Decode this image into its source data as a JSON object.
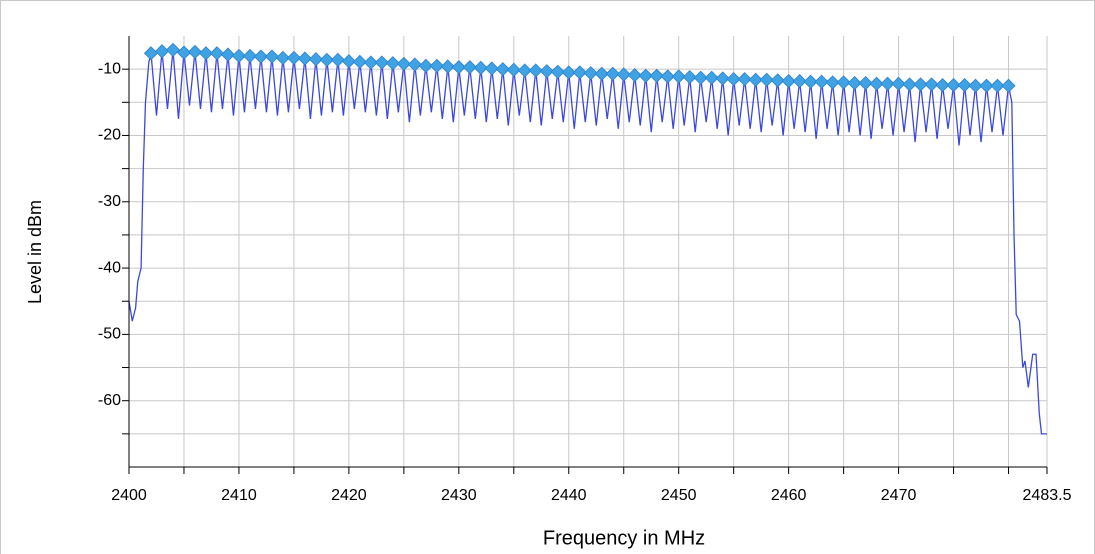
{
  "chart_data": {
    "type": "line",
    "xlabel": "Frequency in MHz",
    "ylabel": "Level in dBm",
    "xlim": [
      2400,
      2483.5
    ],
    "ylim": [
      -70,
      -5
    ],
    "xticks": [
      2400,
      2410,
      2420,
      2430,
      2440,
      2450,
      2460,
      2470,
      2483.5
    ],
    "xminorticks": [
      2405,
      2415,
      2425,
      2435,
      2445,
      2455,
      2465,
      2475,
      2480
    ],
    "yticks": [
      -60,
      -50,
      -40,
      -30,
      -20,
      -10
    ],
    "yminorticks": [
      -65,
      -55,
      -45,
      -35,
      -25,
      -15
    ],
    "grid": true,
    "series": [
      {
        "type": "line",
        "color": "#3b48e0",
        "x": [
          2400,
          2400.3,
          2400.6,
          2400.8,
          2401.1,
          2401.3,
          2401.5,
          2401.8,
          2402,
          2402.5,
          2403,
          2403.5,
          2404,
          2404.5,
          2405,
          2405.5,
          2406,
          2406.5,
          2407,
          2407.5,
          2408,
          2408.5,
          2409,
          2409.5,
          2410,
          2410.5,
          2411,
          2411.5,
          2412,
          2412.5,
          2413,
          2413.5,
          2414,
          2414.5,
          2415,
          2415.5,
          2416,
          2416.5,
          2417,
          2417.5,
          2418,
          2418.5,
          2419,
          2419.5,
          2420,
          2420.5,
          2421,
          2421.5,
          2422,
          2422.5,
          2423,
          2423.5,
          2424,
          2424.5,
          2425,
          2425.5,
          2426,
          2426.5,
          2427,
          2427.5,
          2428,
          2428.5,
          2429,
          2429.5,
          2430,
          2430.5,
          2431,
          2431.5,
          2432,
          2432.5,
          2433,
          2433.5,
          2434,
          2434.5,
          2435,
          2435.5,
          2436,
          2436.5,
          2437,
          2437.5,
          2438,
          2438.5,
          2439,
          2439.5,
          2440,
          2440.5,
          2441,
          2441.5,
          2442,
          2442.5,
          2443,
          2443.5,
          2444,
          2444.5,
          2445,
          2445.5,
          2446,
          2446.5,
          2447,
          2447.5,
          2448,
          2448.5,
          2449,
          2449.5,
          2450,
          2450.5,
          2451,
          2451.5,
          2452,
          2452.5,
          2453,
          2453.5,
          2454,
          2454.5,
          2455,
          2455.5,
          2456,
          2456.5,
          2457,
          2457.5,
          2458,
          2458.5,
          2459,
          2459.5,
          2460,
          2460.5,
          2461,
          2461.5,
          2462,
          2462.5,
          2463,
          2463.5,
          2464,
          2464.5,
          2465,
          2465.5,
          2466,
          2466.5,
          2467,
          2467.5,
          2468,
          2468.5,
          2469,
          2469.5,
          2470,
          2470.5,
          2471,
          2471.5,
          2472,
          2472.5,
          2473,
          2473.5,
          2474,
          2474.5,
          2475,
          2475.5,
          2476,
          2476.5,
          2477,
          2477.5,
          2478,
          2478.5,
          2479,
          2479.5,
          2480,
          2480.3,
          2480.5,
          2480.7,
          2481,
          2481.3,
          2481.5,
          2481.8,
          2482.2,
          2482.5,
          2482.8,
          2483,
          2483.5
        ],
        "values": [
          -45,
          -48,
          -46,
          -42,
          -40,
          -25,
          -15,
          -9,
          -7.6,
          -17,
          -7.3,
          -16,
          -7.1,
          -17.5,
          -7.5,
          -15.5,
          -7.4,
          -16,
          -7.6,
          -16.5,
          -7.6,
          -16,
          -7.8,
          -17,
          -8.0,
          -16.5,
          -8.0,
          -16,
          -8.1,
          -16.5,
          -8.1,
          -17,
          -8.3,
          -16.5,
          -8.3,
          -16,
          -8.4,
          -17.5,
          -8.5,
          -17,
          -8.6,
          -16.5,
          -8.6,
          -17,
          -8.8,
          -16,
          -8.9,
          -16.5,
          -9.0,
          -17,
          -9.0,
          -17.5,
          -9.1,
          -16.5,
          -9.2,
          -18,
          -9.3,
          -17,
          -9.5,
          -16.5,
          -9.5,
          -17.5,
          -9.6,
          -18,
          -9.7,
          -17,
          -9.7,
          -17.5,
          -9.8,
          -18,
          -9.9,
          -17.5,
          -10.0,
          -18.5,
          -10.1,
          -17,
          -10.2,
          -18,
          -10.2,
          -18.5,
          -10.3,
          -17.5,
          -10.4,
          -18,
          -10.5,
          -19,
          -10.5,
          -18,
          -10.6,
          -18.5,
          -10.7,
          -17.5,
          -10.7,
          -19,
          -10.8,
          -18,
          -10.9,
          -18.5,
          -11.0,
          -19.5,
          -11.0,
          -18,
          -11.1,
          -19,
          -11.1,
          -18.5,
          -11.2,
          -19.5,
          -11.3,
          -18,
          -11.3,
          -19,
          -11.4,
          -20,
          -11.5,
          -18.5,
          -11.5,
          -19,
          -11.6,
          -19.5,
          -11.6,
          -18.5,
          -11.7,
          -20,
          -11.8,
          -19,
          -11.8,
          -19.5,
          -11.9,
          -20.5,
          -11.9,
          -19,
          -12.0,
          -20,
          -12.0,
          -19.5,
          -12.1,
          -20,
          -12.1,
          -20.5,
          -12.2,
          -19,
          -12.2,
          -20,
          -12.2,
          -19.5,
          -12.3,
          -21,
          -12.3,
          -19.5,
          -12.3,
          -20.5,
          -12.4,
          -19,
          -12.4,
          -21.5,
          -12.4,
          -20,
          -12.5,
          -21,
          -12.5,
          -19.5,
          -12.5,
          -20,
          -12.5,
          -15,
          -35,
          -47,
          -48,
          -55,
          -54,
          -58,
          -53,
          -53,
          -62,
          -65,
          -65
        ]
      },
      {
        "type": "scatter",
        "marker": "diamond",
        "color": "#3fa2e3",
        "x": [
          2402,
          2403,
          2404,
          2405,
          2406,
          2407,
          2408,
          2409,
          2410,
          2411,
          2412,
          2413,
          2414,
          2415,
          2416,
          2417,
          2418,
          2419,
          2420,
          2421,
          2422,
          2423,
          2424,
          2425,
          2426,
          2427,
          2428,
          2429,
          2430,
          2431,
          2432,
          2433,
          2434,
          2435,
          2436,
          2437,
          2438,
          2439,
          2440,
          2441,
          2442,
          2443,
          2444,
          2445,
          2446,
          2447,
          2448,
          2449,
          2450,
          2451,
          2452,
          2453,
          2454,
          2455,
          2456,
          2457,
          2458,
          2459,
          2460,
          2461,
          2462,
          2463,
          2464,
          2465,
          2466,
          2467,
          2468,
          2469,
          2470,
          2471,
          2472,
          2473,
          2474,
          2475,
          2476,
          2477,
          2478,
          2479,
          2480
        ],
        "values": [
          -7.6,
          -7.3,
          -7.1,
          -7.5,
          -7.4,
          -7.6,
          -7.6,
          -7.8,
          -8.0,
          -8.0,
          -8.1,
          -8.1,
          -8.3,
          -8.3,
          -8.4,
          -8.5,
          -8.6,
          -8.6,
          -8.8,
          -8.9,
          -9.0,
          -9.0,
          -9.1,
          -9.2,
          -9.3,
          -9.5,
          -9.5,
          -9.6,
          -9.7,
          -9.7,
          -9.8,
          -9.9,
          -10.0,
          -10.1,
          -10.2,
          -10.2,
          -10.3,
          -10.4,
          -10.5,
          -10.5,
          -10.6,
          -10.7,
          -10.7,
          -10.8,
          -10.9,
          -11.0,
          -11.0,
          -11.1,
          -11.1,
          -11.2,
          -11.3,
          -11.3,
          -11.4,
          -11.5,
          -11.5,
          -11.6,
          -11.6,
          -11.7,
          -11.8,
          -11.8,
          -11.9,
          -11.9,
          -12.0,
          -12.0,
          -12.1,
          -12.1,
          -12.2,
          -12.2,
          -12.2,
          -12.3,
          -12.3,
          -12.3,
          -12.4,
          -12.4,
          -12.4,
          -12.5,
          -12.5,
          -12.5,
          -12.5
        ]
      }
    ]
  }
}
